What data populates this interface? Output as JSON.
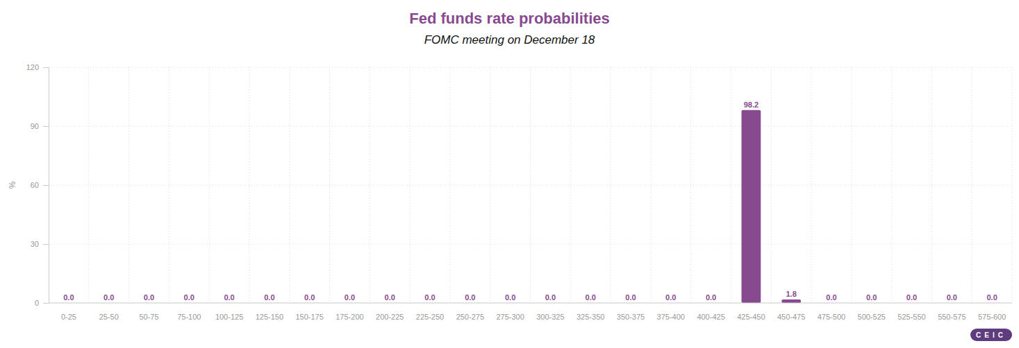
{
  "chart_data": {
    "type": "bar",
    "title": "Fed funds rate probabilities",
    "subtitle": "FOMC meeting on December 18",
    "y_label": "%",
    "logo": "CEIC",
    "categories": [
      "0-25",
      "25-50",
      "50-75",
      "75-100",
      "100-125",
      "125-150",
      "150-175",
      "175-200",
      "200-225",
      "225-250",
      "250-275",
      "275-300",
      "300-325",
      "325-350",
      "350-375",
      "375-400",
      "400-425",
      "425-450",
      "450-475",
      "475-500",
      "500-525",
      "525-550",
      "550-575",
      "575-600"
    ],
    "values": [
      0,
      0,
      0,
      0,
      0,
      0,
      0,
      0,
      0,
      0,
      0,
      0,
      0,
      0,
      0,
      0,
      0,
      98.2,
      1.8,
      0,
      0,
      0,
      0,
      0
    ],
    "value_labels": [
      "0.0",
      "0.0",
      "0.0",
      "0.0",
      "0.0",
      "0.0",
      "0.0",
      "0.0",
      "0.0",
      "0.0",
      "0.0",
      "0.0",
      "0.0",
      "0.0",
      "0.0",
      "0.0",
      "0.0",
      "98.2",
      "1.8",
      "0.0",
      "0.0",
      "0.0",
      "0.0",
      "0.0"
    ],
    "color": "#874a8e",
    "ylim": [
      0,
      120
    ],
    "yticks": [
      0,
      30,
      60,
      90,
      120
    ],
    "grid": true,
    "data_labels": true
  }
}
